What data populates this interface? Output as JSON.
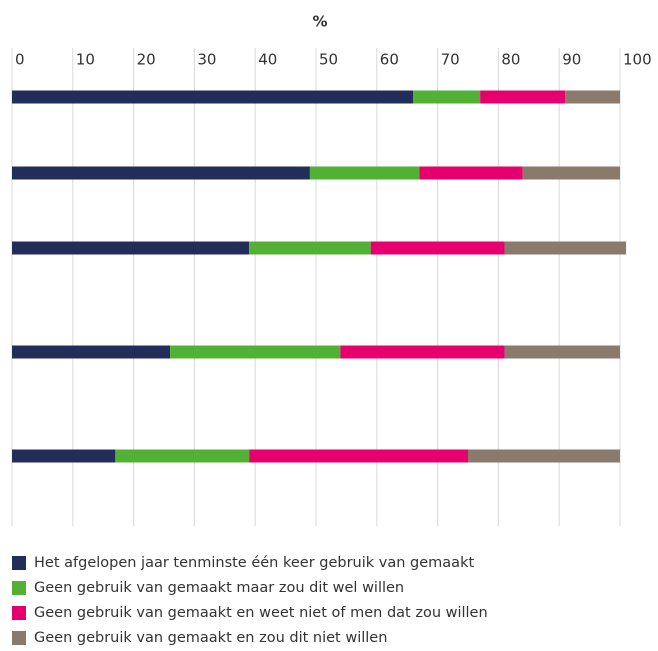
{
  "chart_data": {
    "type": "stacked-barh",
    "title": "%",
    "categories": [
      null,
      null,
      null,
      null,
      null
    ],
    "series": [
      {
        "name": "Het afgelopen jaar tenminste één keer gebruik van gemaakt",
        "color": "#232d5a",
        "values": [
          66,
          49,
          39,
          26,
          17
        ]
      },
      {
        "name": "Geen gebruik van gemaakt maar zou dit wel willen",
        "color": "#52b135",
        "values": [
          11,
          18,
          20,
          28,
          22
        ]
      },
      {
        "name": "Geen gebruik van gemaakt en weet niet of men dat zou willen",
        "color": "#e6006e",
        "values": [
          14,
          17,
          22,
          27,
          36
        ]
      },
      {
        "name": "Geen gebruik van gemaakt en zou dit niet willen",
        "color": "#8a7a6b",
        "values": [
          9,
          16,
          20,
          19,
          25
        ]
      }
    ],
    "xlim": [
      0,
      100
    ],
    "xticks": [
      0,
      10,
      20,
      30,
      40,
      50,
      60,
      70,
      80,
      90,
      100
    ],
    "grid": true,
    "legend": "bottom"
  }
}
